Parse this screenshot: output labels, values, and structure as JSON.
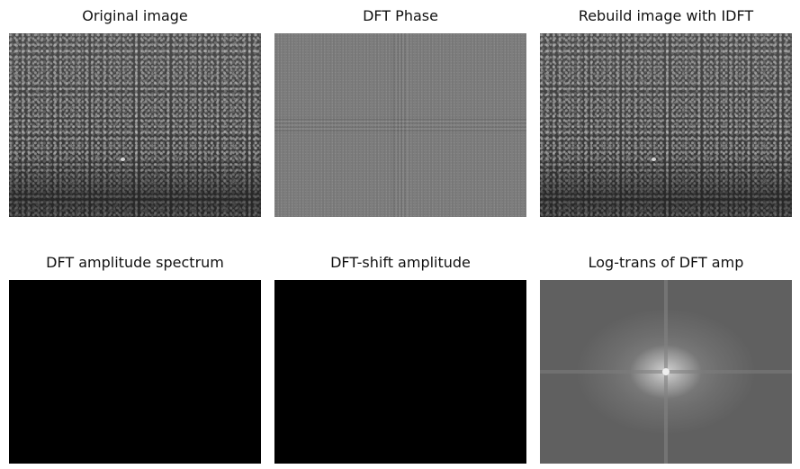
{
  "panels": [
    {
      "title": "Original image",
      "kind": "texture"
    },
    {
      "title": "DFT Phase",
      "kind": "phase"
    },
    {
      "title": "Rebuild image with IDFT",
      "kind": "texture"
    },
    {
      "title": "DFT amplitude spectrum",
      "kind": "black"
    },
    {
      "title": "DFT-shift amplitude",
      "kind": "black"
    },
    {
      "title": "Log-trans of DFT amp",
      "kind": "log"
    }
  ],
  "colors": {
    "background": "#ffffff",
    "black_panel": "#000000",
    "phase_grey": "#7d7d7d",
    "texture_base": "#3a3a3a"
  }
}
